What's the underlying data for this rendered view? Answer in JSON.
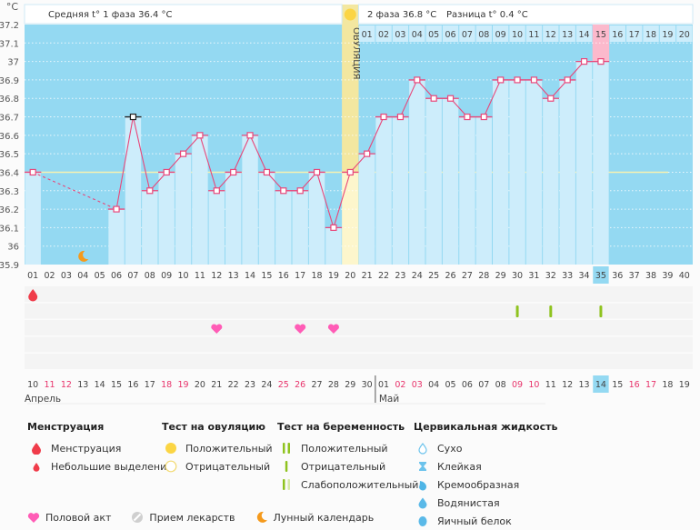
{
  "header": {
    "unit_label": "°C",
    "phase1_label": "Средняя t° 1 фаза 36.4 °C",
    "phase2_label": "2 фаза 36.8 °C",
    "difference_label": "Разница t° 0.4 °C",
    "ovulation_label": "ОВУЛЯЦИЯ"
  },
  "chart_data": {
    "type": "line",
    "title": "",
    "xlabel": "",
    "ylabel": "°C",
    "ylim": [
      35.9,
      37.2
    ],
    "y_ticks": [
      "37.2",
      "37.1",
      "37",
      "36.9",
      "36.8",
      "36.7",
      "36.6",
      "36.5",
      "36.4",
      "36.3",
      "36.2",
      "36.1",
      "36",
      "35.9"
    ],
    "grid": true,
    "cycle_days": [
      "01",
      "02",
      "03",
      "04",
      "05",
      "06",
      "07",
      "08",
      "09",
      "10",
      "11",
      "12",
      "13",
      "14",
      "15",
      "16",
      "17",
      "18",
      "19",
      "20",
      "21",
      "22",
      "23",
      "24",
      "25",
      "26",
      "27",
      "28",
      "29",
      "30",
      "31",
      "32",
      "33",
      "34",
      "35",
      "36",
      "37",
      "38",
      "39",
      "40"
    ],
    "current_cycle_day": "35",
    "ovulation_day": 20,
    "post_ovulation_days": [
      "01",
      "02",
      "03",
      "04",
      "05",
      "06",
      "07",
      "08",
      "09",
      "10",
      "11",
      "12",
      "13",
      "14",
      "15",
      "16",
      "17",
      "18",
      "19",
      "20"
    ],
    "highlighted_post_ovulation_day": "15",
    "coverline": 36.4,
    "series": [
      {
        "name": "Базальная температура",
        "x": [
          1,
          6,
          7,
          8,
          9,
          10,
          11,
          12,
          13,
          14,
          15,
          16,
          17,
          18,
          19,
          20,
          21,
          22,
          23,
          24,
          25,
          26,
          27,
          28,
          29,
          30,
          31,
          32,
          33,
          34,
          35
        ],
        "values": [
          36.4,
          36.2,
          36.7,
          36.3,
          36.4,
          36.5,
          36.6,
          36.3,
          36.4,
          36.6,
          36.4,
          36.3,
          36.3,
          36.4,
          36.1,
          36.4,
          36.5,
          36.7,
          36.7,
          36.9,
          36.8,
          36.8,
          36.7,
          36.7,
          36.9,
          36.9,
          36.9,
          36.8,
          36.9,
          37.0,
          37.0
        ]
      }
    ],
    "outlier_day": 7,
    "gap_days": [
      2,
      3,
      4,
      5
    ],
    "moon_day": 4,
    "calendar_dates": [
      {
        "d": "10",
        "w": false
      },
      {
        "d": "11",
        "w": true
      },
      {
        "d": "12",
        "w": true
      },
      {
        "d": "13",
        "w": false
      },
      {
        "d": "14",
        "w": false
      },
      {
        "d": "15",
        "w": false
      },
      {
        "d": "16",
        "w": false
      },
      {
        "d": "17",
        "w": false
      },
      {
        "d": "18",
        "w": true
      },
      {
        "d": "19",
        "w": true
      },
      {
        "d": "20",
        "w": false
      },
      {
        "d": "21",
        "w": false
      },
      {
        "d": "22",
        "w": false
      },
      {
        "d": "23",
        "w": false
      },
      {
        "d": "24",
        "w": false
      },
      {
        "d": "25",
        "w": true
      },
      {
        "d": "26",
        "w": true
      },
      {
        "d": "27",
        "w": false
      },
      {
        "d": "28",
        "w": false
      },
      {
        "d": "29",
        "w": false
      },
      {
        "d": "30",
        "w": false
      },
      {
        "d": "01",
        "w": false
      },
      {
        "d": "02",
        "w": true
      },
      {
        "d": "03",
        "w": true
      },
      {
        "d": "04",
        "w": false
      },
      {
        "d": "05",
        "w": false
      },
      {
        "d": "06",
        "w": false
      },
      {
        "d": "07",
        "w": false
      },
      {
        "d": "08",
        "w": false
      },
      {
        "d": "09",
        "w": true
      },
      {
        "d": "10",
        "w": true
      },
      {
        "d": "11",
        "w": false
      },
      {
        "d": "12",
        "w": false
      },
      {
        "d": "13",
        "w": false
      },
      {
        "d": "14",
        "w": false
      },
      {
        "d": "15",
        "w": false
      },
      {
        "d": "16",
        "w": true
      },
      {
        "d": "17",
        "w": true
      },
      {
        "d": "18",
        "w": false
      },
      {
        "d": "19",
        "w": false
      }
    ],
    "months": [
      {
        "label": "Апрель",
        "start_day": 1
      },
      {
        "label": "Май",
        "start_day": 22
      }
    ],
    "markers": {
      "menstruation_days": [
        1
      ],
      "pregnancy_test_negative_days": [
        30,
        32,
        35
      ],
      "intercourse_days": [
        12,
        17,
        19
      ]
    }
  },
  "colors": {
    "bg_high": "#94d9f2",
    "bar": "#cdedfb",
    "line": "#e8477a",
    "ovulation": "#f3e7a0",
    "highlight_pink": "#fbb9cc",
    "weekend": "#e8336b",
    "current": "#94d9f2",
    "coverline": "#f6f2b0"
  },
  "legend": {
    "menstruation": {
      "title": "Менструация",
      "items": [
        "Менструация",
        "Небольшие выделения"
      ]
    },
    "ovulation_test": {
      "title": "Тест на овуляцию",
      "items": [
        "Положительный",
        "Отрицательный"
      ]
    },
    "pregnancy_test": {
      "title": "Тест на беременность",
      "items": [
        "Положительный",
        "Отрицательный",
        "Слабоположительный"
      ]
    },
    "cervical_fluid": {
      "title": "Цервикальная жидкость",
      "items": [
        "Сухо",
        "Клейкая",
        "Кремообразная",
        "Водянистая",
        "Яичный белок"
      ]
    },
    "other": [
      "Половой акт",
      "Прием лекарств",
      "Лунный календарь"
    ]
  }
}
